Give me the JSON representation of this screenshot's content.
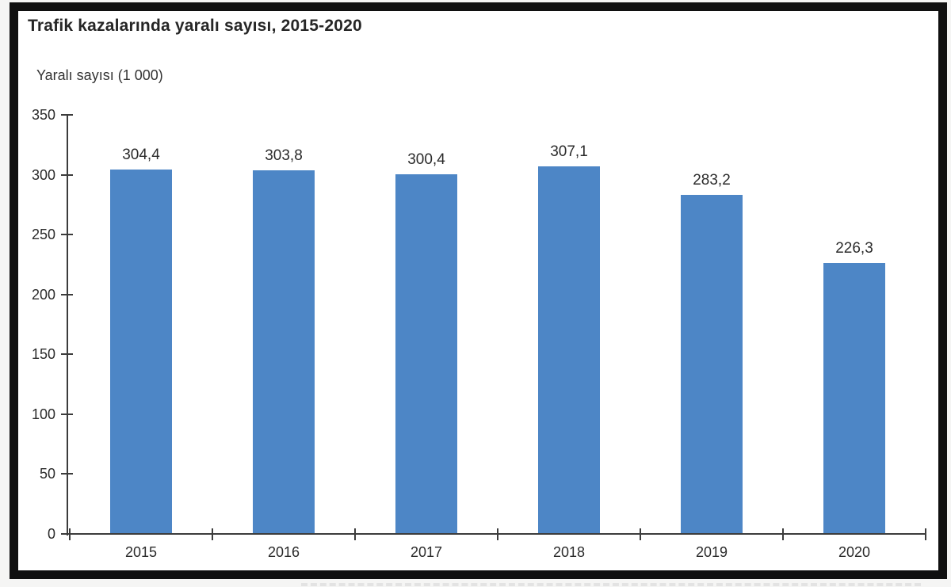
{
  "page": {
    "outer_background": "#f5f5f4",
    "frame_border_color": "#101010",
    "inner_background": "#ffffff"
  },
  "chart_data": {
    "type": "bar",
    "title": "Trafik kazalarında yaralı sayısı, 2015-2020",
    "ylabel": "Yaralı sayısı (1 000)",
    "xlabel": "",
    "categories": [
      "2015",
      "2016",
      "2017",
      "2018",
      "2019",
      "2020"
    ],
    "values": [
      304.4,
      303.8,
      300.4,
      307.1,
      283.2,
      226.3
    ],
    "value_labels": [
      "304,4",
      "303,8",
      "300,4",
      "307,1",
      "283,2",
      "226,3"
    ],
    "y_ticks": [
      0,
      50,
      100,
      150,
      200,
      250,
      300,
      350
    ],
    "ylim": [
      0,
      350
    ],
    "grid": false,
    "legend": "none",
    "bar_color": "#4d86c6",
    "axis_color": "#3c3c3c",
    "text_color": "#2b2b2b"
  }
}
